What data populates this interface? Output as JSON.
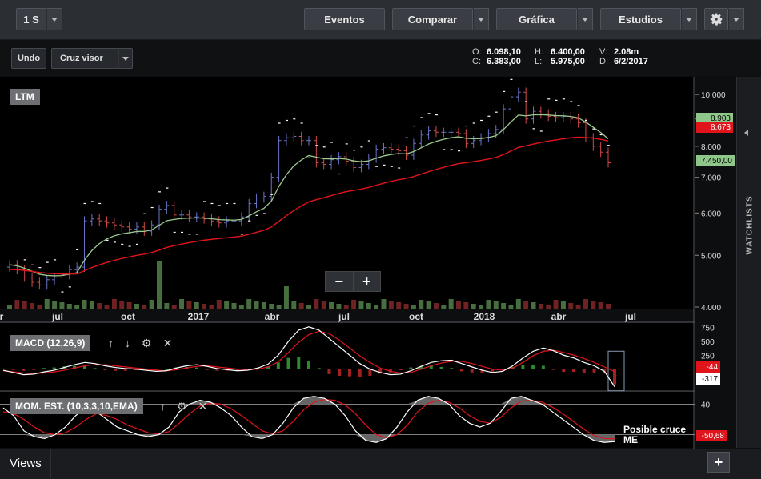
{
  "toolbar": {
    "period": "1 S",
    "events": "Eventos",
    "compare": "Comparar",
    "chart": "Gráfica",
    "studies": "Estudios"
  },
  "subbar": {
    "undo": "Undo",
    "crosshair": "Cruz visor"
  },
  "ohlc": {
    "o_label": "O:",
    "o_value": "6.098,10",
    "c_label": "C:",
    "c_value": "6.383,00",
    "h_label": "H:",
    "h_value": "6.400,00",
    "l_label": "L:",
    "l_value": "5.975,00",
    "v_label": "V:",
    "v_value": "2.08m",
    "d_label": "D:",
    "d_value": "6/2/2017"
  },
  "main_label": "LTM",
  "price_tags": {
    "tag1": "8.903",
    "tag2": "8.673",
    "tag3": "7.450,00"
  },
  "macd_label": "MACD (12,26,9)",
  "macd_tags": {
    "tag1": "-44",
    "tag2": "-317"
  },
  "mom_label": "MOM. EST. (10,3,3,10,EMA)",
  "mom_tags": {
    "tag1": "-50,68"
  },
  "annotation": {
    "line1": "Posible cruce",
    "line2": "ME"
  },
  "watchlists": "WATCHLISTS",
  "views": "Views",
  "colors": {
    "up": "#6fb26b",
    "down": "#d53a3a",
    "ma_short": "#9bc98f",
    "ma_long": "#e0141b",
    "signal": "#e0141b",
    "macd_line": "#ffffff"
  },
  "chart_data": [
    {
      "type": "candlestick",
      "scale": "log",
      "yticks": [
        "10.000",
        "9.000",
        "8.000",
        "7.000",
        "6.000",
        "5.000",
        "4.000"
      ],
      "xticks": [
        "r",
        "jul",
        "oct",
        "2017",
        "abr",
        "jul",
        "oct",
        "2018",
        "abr",
        "jul"
      ],
      "ylim": [
        4000,
        10500
      ],
      "series": [
        {
          "name": "close",
          "values": [
            4800,
            4700,
            4550,
            4450,
            4400,
            4500,
            4550,
            4600,
            4700,
            4750,
            5800,
            5850,
            5800,
            5750,
            5700,
            5650,
            5600,
            5650,
            5550,
            5700,
            6100,
            6200,
            5950,
            5950,
            5900,
            5900,
            5850,
            5800,
            5750,
            5800,
            5800,
            5900,
            6250,
            6400,
            6450,
            7000,
            8200,
            8300,
            8350,
            8200,
            8200,
            7450,
            7400,
            7550,
            7650,
            7500,
            7300,
            7400,
            7600,
            7900,
            7950,
            7900,
            7850,
            7700,
            8100,
            8400,
            8550,
            8500,
            8500,
            8500,
            8450,
            8100,
            8200,
            8300,
            8450,
            8600,
            9400,
            9900,
            10100,
            9000,
            9300,
            9200,
            9100,
            9050,
            9100,
            9000,
            8850,
            8300,
            8000,
            7800,
            7450
          ]
        }
      ]
    },
    {
      "type": "line",
      "name": "MACD (12,26,9)",
      "yticks": [
        "750",
        "500",
        "250",
        "0"
      ],
      "series": [
        {
          "name": "macd",
          "values": [
            -20,
            -60,
            -100,
            -90,
            -50,
            -20,
            30,
            80,
            120,
            100,
            60,
            30,
            10,
            0,
            -20,
            -40,
            -30,
            20,
            60,
            80,
            50,
            10,
            -10,
            -30,
            -20,
            20,
            90,
            250,
            500,
            700,
            760,
            700,
            550,
            400,
            250,
            100,
            0,
            -60,
            -100,
            -90,
            -30,
            50,
            120,
            150,
            160,
            100,
            40,
            -20,
            -60,
            -40,
            60,
            200,
            320,
            380,
            330,
            250,
            200,
            120,
            60,
            -40,
            -317
          ]
        },
        {
          "name": "signal",
          "values": [
            -30,
            -50,
            -70,
            -80,
            -70,
            -50,
            -20,
            20,
            60,
            80,
            80,
            60,
            40,
            20,
            0,
            -20,
            -30,
            -10,
            20,
            50,
            60,
            40,
            20,
            0,
            -10,
            0,
            40,
            130,
            300,
            480,
            620,
            680,
            640,
            520,
            380,
            240,
            120,
            20,
            -40,
            -70,
            -60,
            0,
            60,
            110,
            140,
            140,
            100,
            50,
            0,
            -20,
            20,
            120,
            240,
            320,
            340,
            300,
            250,
            190,
            120,
            40,
            -44
          ]
        }
      ],
      "histogram_values": [
        10,
        -10,
        -30,
        -10,
        20,
        30,
        50,
        60,
        60,
        20,
        -20,
        -30,
        -30,
        -20,
        -20,
        -20,
        0,
        30,
        40,
        30,
        -10,
        -30,
        -30,
        -30,
        -10,
        20,
        50,
        120,
        200,
        220,
        140,
        20,
        -90,
        -120,
        -130,
        -140,
        -120,
        -80,
        -60,
        -20,
        30,
        50,
        60,
        40,
        20,
        -40,
        -60,
        -70,
        -60,
        -20,
        40,
        80,
        80,
        60,
        -10,
        -50,
        -50,
        -70,
        -60,
        -80,
        -273
      ]
    },
    {
      "type": "line",
      "name": "MOM. EST. (10,3,3,10,EMA)",
      "yticks": [
        "40",
        "-40"
      ],
      "series": [
        {
          "name": "k",
          "values": [
            30,
            10,
            -30,
            -45,
            -50,
            -40,
            -20,
            10,
            30,
            20,
            0,
            -20,
            -30,
            -40,
            -45,
            -40,
            -20,
            20,
            40,
            50,
            45,
            30,
            10,
            -20,
            -45,
            -50,
            -40,
            -10,
            30,
            55,
            60,
            55,
            40,
            10,
            -30,
            -55,
            -60,
            -50,
            -20,
            20,
            50,
            60,
            55,
            40,
            10,
            -10,
            -20,
            -10,
            20,
            55,
            60,
            50,
            40,
            20,
            0,
            -20,
            -40,
            -55,
            -60,
            -58
          ]
        },
        {
          "name": "d",
          "values": [
            20,
            15,
            0,
            -20,
            -35,
            -40,
            -35,
            -20,
            0,
            15,
            10,
            0,
            -15,
            -25,
            -35,
            -38,
            -32,
            -10,
            15,
            35,
            42,
            40,
            28,
            10,
            -10,
            -30,
            -38,
            -30,
            -5,
            25,
            45,
            52,
            50,
            38,
            15,
            -15,
            -40,
            -48,
            -40,
            -15,
            20,
            42,
            50,
            45,
            30,
            10,
            -5,
            -10,
            5,
            30,
            48,
            50,
            45,
            32,
            15,
            -5,
            -25,
            -42,
            -50,
            -50.68
          ]
        }
      ]
    }
  ]
}
